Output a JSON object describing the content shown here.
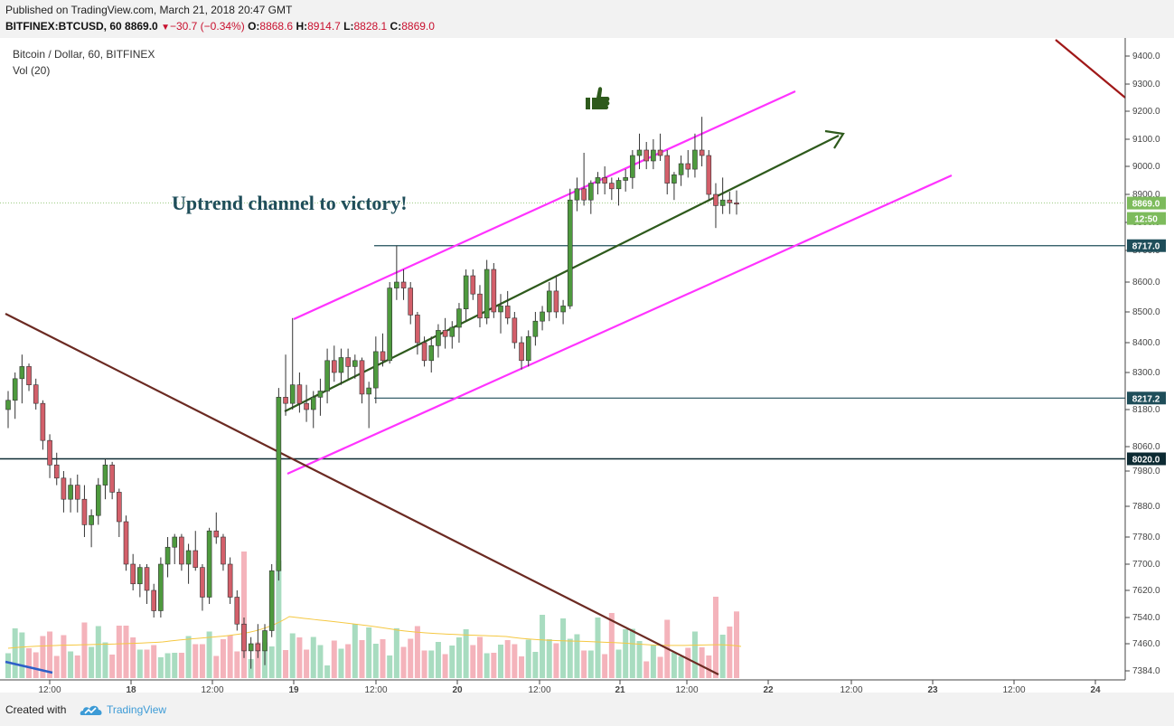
{
  "header": {
    "published": "Published on TradingView.com, March 21, 2018 20:47 GMT",
    "symbol": "BITFINEX:BTCUSD, 60",
    "last": "8869.0",
    "change": "−30.7 (−0.34%)",
    "o_label": "O:",
    "o_value": "8868.6",
    "h_label": "H:",
    "h_value": "8914.7",
    "l_label": "L:",
    "l_value": "8828.1",
    "c_label": "C:",
    "c_value": "8869.0"
  },
  "legend": {
    "title": "Bitcoin / Dollar, 60, BITFINEX",
    "volume": "Vol (20)"
  },
  "footer": {
    "created_with": "Created with",
    "brand": "TradingView"
  },
  "colors": {
    "up": "#4e9a3e",
    "down": "#d35f6a",
    "up_vol": "#a8dcc0",
    "down_vol": "#f4b3bb",
    "channel": "#ff33ff",
    "trend": "#2e5a1c",
    "downtrend": "#6b2a22"
  },
  "chart_data": {
    "type": "candlestick",
    "symbol": "BTCUSD",
    "interval": "60",
    "price_axis": {
      "range": [
        7384,
        9450
      ],
      "ticks": [
        9400,
        9300,
        9200,
        9100,
        9000,
        8900,
        8800,
        8700,
        8600,
        8500,
        8400,
        8300,
        8180,
        8060,
        7980,
        7880,
        7780,
        7700,
        7620,
        7540,
        7460,
        7384
      ]
    },
    "time_axis": {
      "labels": [
        "12:00",
        "18",
        "12:00",
        "19",
        "12:00",
        "20",
        "12:00",
        "21",
        "12:00",
        "22",
        "12:00",
        "23",
        "12:00",
        "24"
      ]
    },
    "price_labels": [
      {
        "value": "8869.0",
        "color": "#7dbb5c"
      },
      {
        "value": "12:50",
        "color": "#7dbb5c"
      },
      {
        "value": "8717.0",
        "color": "#1f4e5a"
      },
      {
        "value": "8217.2",
        "color": "#1f4e5a"
      },
      {
        "value": "8020.0",
        "color": "#0d2b33"
      }
    ],
    "horizontal_levels": [
      8717.0,
      8217.2,
      8020.0
    ],
    "last_price": 8869.0,
    "annotations": [
      {
        "text": "Uptrend channel to victory!"
      }
    ],
    "candles": [
      [
        8180,
        8240,
        8120,
        8210
      ],
      [
        8210,
        8300,
        8150,
        8280
      ],
      [
        8280,
        8360,
        8200,
        8320
      ],
      [
        8320,
        8330,
        8240,
        8260
      ],
      [
        8260,
        8280,
        8180,
        8200
      ],
      [
        8200,
        8210,
        8050,
        8080
      ],
      [
        8080,
        8100,
        7960,
        8000
      ],
      [
        8000,
        8040,
        7940,
        7960
      ],
      [
        7960,
        7980,
        7860,
        7900
      ],
      [
        7900,
        7960,
        7860,
        7940
      ],
      [
        7940,
        7970,
        7860,
        7900
      ],
      [
        7900,
        7940,
        7780,
        7820
      ],
      [
        7820,
        7870,
        7750,
        7850
      ],
      [
        7850,
        7960,
        7820,
        7940
      ],
      [
        7940,
        8020,
        7900,
        8000
      ],
      [
        8000,
        8010,
        7900,
        7920
      ],
      [
        7920,
        7930,
        7780,
        7830
      ],
      [
        7830,
        7850,
        7680,
        7700
      ],
      [
        7700,
        7730,
        7620,
        7640
      ],
      [
        7640,
        7700,
        7600,
        7690
      ],
      [
        7690,
        7700,
        7580,
        7620
      ],
      [
        7620,
        7640,
        7540,
        7560
      ],
      [
        7560,
        7720,
        7540,
        7700
      ],
      [
        7700,
        7780,
        7660,
        7750
      ],
      [
        7750,
        7790,
        7700,
        7780
      ],
      [
        7780,
        7790,
        7680,
        7700
      ],
      [
        7700,
        7760,
        7640,
        7740
      ],
      [
        7740,
        7800,
        7680,
        7690
      ],
      [
        7690,
        7700,
        7560,
        7600
      ],
      [
        7600,
        7810,
        7580,
        7800
      ],
      [
        7800,
        7860,
        7760,
        7780
      ],
      [
        7780,
        7790,
        7680,
        7700
      ],
      [
        7700,
        7720,
        7580,
        7600
      ],
      [
        7600,
        7620,
        7500,
        7520
      ],
      [
        7520,
        7540,
        7420,
        7440
      ],
      [
        7440,
        7480,
        7390,
        7460
      ],
      [
        7460,
        7520,
        7420,
        7440
      ],
      [
        7440,
        7520,
        7400,
        7500
      ],
      [
        7500,
        7700,
        7480,
        7680
      ],
      [
        7680,
        8250,
        7650,
        8220
      ],
      [
        8220,
        8360,
        8160,
        8200
      ],
      [
        8200,
        8480,
        8180,
        8260
      ],
      [
        8260,
        8300,
        8170,
        8200
      ],
      [
        8200,
        8260,
        8140,
        8180
      ],
      [
        8180,
        8240,
        8120,
        8220
      ],
      [
        8220,
        8280,
        8160,
        8240
      ],
      [
        8240,
        8380,
        8200,
        8340
      ],
      [
        8340,
        8390,
        8270,
        8300
      ],
      [
        8300,
        8380,
        8260,
        8350
      ],
      [
        8350,
        8380,
        8280,
        8320
      ],
      [
        8320,
        8360,
        8280,
        8340
      ],
      [
        8340,
        8350,
        8200,
        8230
      ],
      [
        8230,
        8270,
        8120,
        8250
      ],
      [
        8250,
        8420,
        8200,
        8370
      ],
      [
        8370,
        8430,
        8320,
        8340
      ],
      [
        8340,
        8600,
        8330,
        8580
      ],
      [
        8580,
        8717,
        8540,
        8600
      ],
      [
        8600,
        8640,
        8540,
        8580
      ],
      [
        8580,
        8600,
        8460,
        8490
      ],
      [
        8490,
        8500,
        8360,
        8400
      ],
      [
        8400,
        8420,
        8320,
        8340
      ],
      [
        8340,
        8420,
        8300,
        8390
      ],
      [
        8390,
        8460,
        8350,
        8440
      ],
      [
        8440,
        8480,
        8380,
        8420
      ],
      [
        8420,
        8470,
        8380,
        8450
      ],
      [
        8450,
        8530,
        8400,
        8510
      ],
      [
        8510,
        8640,
        8470,
        8620
      ],
      [
        8620,
        8640,
        8540,
        8560
      ],
      [
        8560,
        8590,
        8450,
        8480
      ],
      [
        8480,
        8670,
        8460,
        8640
      ],
      [
        8640,
        8660,
        8480,
        8500
      ],
      [
        8500,
        8560,
        8430,
        8520
      ],
      [
        8520,
        8570,
        8460,
        8480
      ],
      [
        8480,
        8500,
        8380,
        8400
      ],
      [
        8400,
        8420,
        8310,
        8340
      ],
      [
        8340,
        8440,
        8320,
        8420
      ],
      [
        8420,
        8500,
        8390,
        8470
      ],
      [
        8470,
        8520,
        8440,
        8500
      ],
      [
        8500,
        8600,
        8470,
        8570
      ],
      [
        8570,
        8620,
        8480,
        8500
      ],
      [
        8500,
        8540,
        8460,
        8520
      ],
      [
        8520,
        8920,
        8510,
        8880
      ],
      [
        8880,
        8960,
        8840,
        8920
      ],
      [
        8920,
        9050,
        8860,
        8880
      ],
      [
        8880,
        8950,
        8830,
        8940
      ],
      [
        8940,
        8980,
        8900,
        8960
      ],
      [
        8960,
        9000,
        8900,
        8940
      ],
      [
        8940,
        8960,
        8880,
        8920
      ],
      [
        8920,
        8960,
        8860,
        8950
      ],
      [
        8950,
        8990,
        8910,
        8960
      ],
      [
        8960,
        9060,
        8920,
        9040
      ],
      [
        9040,
        9120,
        8990,
        9060
      ],
      [
        9060,
        9090,
        8990,
        9020
      ],
      [
        9020,
        9100,
        8990,
        9060
      ],
      [
        9060,
        9120,
        9020,
        9040
      ],
      [
        9040,
        9060,
        8900,
        8940
      ],
      [
        8940,
        8980,
        8880,
        8970
      ],
      [
        8970,
        9040,
        8930,
        9010
      ],
      [
        9010,
        9060,
        8960,
        8990
      ],
      [
        8990,
        9120,
        8960,
        9060
      ],
      [
        9060,
        9180,
        9000,
        9040
      ],
      [
        9040,
        9060,
        8880,
        8900
      ],
      [
        8900,
        8940,
        8780,
        8860
      ],
      [
        8860,
        8960,
        8830,
        8880
      ],
      [
        8880,
        8910,
        8830,
        8870
      ],
      [
        8870,
        8914,
        8828,
        8869
      ]
    ],
    "volume_ma": 7450
  }
}
